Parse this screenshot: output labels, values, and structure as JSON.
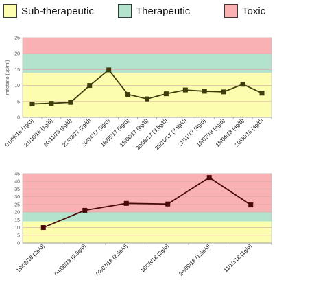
{
  "legend": {
    "items": [
      {
        "label": "Sub-therapeutic",
        "color": "#fdfdb0"
      },
      {
        "label": "Therapeutic",
        "color": "#b3e3cc"
      },
      {
        "label": "Toxic",
        "color": "#f9b1b3"
      }
    ]
  },
  "chart_data": [
    {
      "type": "line",
      "title": "",
      "xlabel": "",
      "ylabel": "mitotano (ug/ml)",
      "ylim": [
        0,
        25
      ],
      "yticks": [
        0,
        5,
        10,
        15,
        20,
        25
      ],
      "grid": true,
      "bands": [
        {
          "name": "Sub-therapeutic",
          "from": 0,
          "to": 14,
          "color": "#fdfdb0"
        },
        {
          "name": "Therapeutic",
          "from": 14,
          "to": 20,
          "color": "#b3e3cc"
        },
        {
          "name": "Toxic",
          "from": 20,
          "to": 25,
          "color": "#f9b1b3"
        }
      ],
      "categories": [
        "01/09/16 (1g/d)",
        "21/10/16 (1g/d)",
        "20/11/16 (2g/d)",
        "22/02/17 (2g/d)",
        "20/04/17 (3g/d)",
        "18/05/17 (3g/d)",
        "15/06/17 (3g/d)",
        "20/08/17 (3,5g/d)",
        "25/10/17 (3,5g/d)",
        "21/11/17 (4g/d)",
        "12/02/18 (4g/d)",
        "15/04/18 (4g/d)",
        "20/06/18 (4g/d)"
      ],
      "series": [
        {
          "values": [
            4.2,
            4.4,
            4.7,
            10.0,
            14.9,
            7.2,
            5.8,
            7.4,
            8.6,
            8.2,
            8.0,
            10.4,
            7.6
          ],
          "color": "#3d3d0c"
        }
      ]
    },
    {
      "type": "line",
      "title": "",
      "xlabel": "",
      "ylabel": "",
      "ylim": [
        0,
        45
      ],
      "yticks": [
        0,
        5,
        10,
        15,
        20,
        25,
        30,
        35,
        40,
        45
      ],
      "grid": true,
      "bands": [
        {
          "name": "Sub-therapeutic",
          "from": 0,
          "to": 14,
          "color": "#fdfdb0"
        },
        {
          "name": "Therapeutic",
          "from": 14,
          "to": 20,
          "color": "#b3e3cc"
        },
        {
          "name": "Toxic",
          "from": 20,
          "to": 45,
          "color": "#f9b1b3"
        }
      ],
      "categories": [
        "19/02/18 (2g/d)",
        "04/06/18 (2,5g/d)",
        "09/07/18 (2,5g/d)",
        "16/08/18 (2g/d)",
        "24/09/18 (1,5g/d)",
        "11/10/18 (1g/d)"
      ],
      "series": [
        {
          "values": [
            10.0,
            21.2,
            25.7,
            25.3,
            42.5,
            24.7
          ],
          "color": "#4a0a0a"
        }
      ]
    }
  ]
}
